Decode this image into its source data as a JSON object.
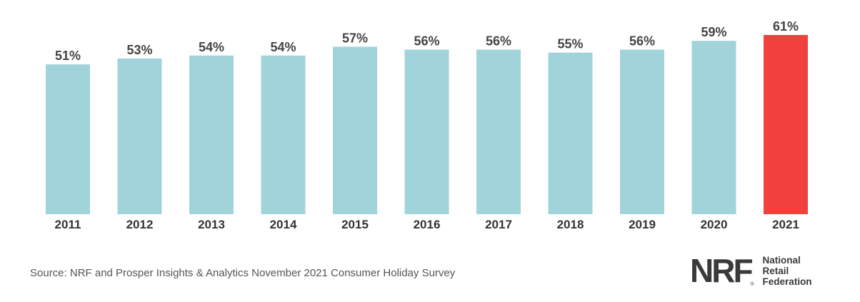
{
  "chart_data": {
    "type": "bar",
    "categories": [
      "2011",
      "2012",
      "2013",
      "2014",
      "2015",
      "2016",
      "2017",
      "2018",
      "2019",
      "2020",
      "2021"
    ],
    "values": [
      51,
      53,
      54,
      54,
      57,
      56,
      56,
      55,
      56,
      59,
      61
    ],
    "data_labels": [
      "51%",
      "53%",
      "54%",
      "54%",
      "57%",
      "56%",
      "56%",
      "55%",
      "56%",
      "59%",
      "61%"
    ],
    "ylim": [
      0,
      61
    ],
    "grid": false,
    "legend": "none",
    "colors": {
      "default": "#a1d3da",
      "highlight": "#f0413c"
    },
    "highlight_category": "2021"
  },
  "footer": {
    "source": "Source: NRF and Prosper Insights & Analytics November 2021 Consumer Holiday Survey"
  },
  "logo": {
    "mark": "NRF",
    "reg": "®",
    "lines": [
      "National",
      "Retail",
      "Federation"
    ]
  }
}
